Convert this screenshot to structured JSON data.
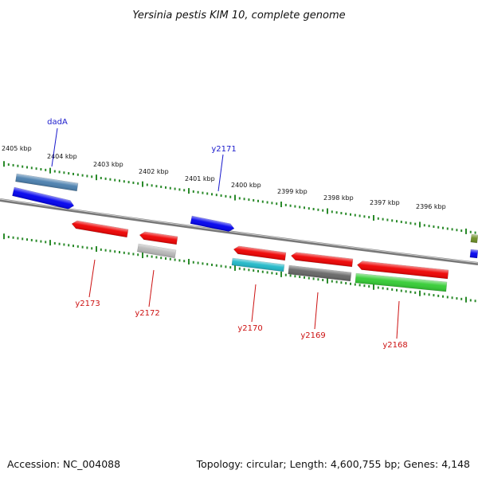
{
  "title": "Yersinia pestis KIM 10, complete genome",
  "footer": {
    "accession": "Accession: NC_004088",
    "summary": "Topology: circular; Length: 4,600,755 bp; Genes: 4,148"
  },
  "colors": {
    "backbone": "#8a8a8a",
    "tick": "#2a8a2a",
    "forward_label": "#1a1acc",
    "reverse_label": "#cc1111"
  },
  "ticks": [
    "2405 kbp",
    "2404 kbp",
    "2403 kbp",
    "2402 kbp",
    "2401 kbp",
    "2400 kbp",
    "2399 kbp",
    "2398 kbp",
    "2397 kbp",
    "2396 kbp"
  ],
  "genes": {
    "forward": [
      {
        "name": "dadA",
        "color": "#0000ee"
      },
      {
        "name": "",
        "color": "#4a7fae"
      },
      {
        "name": "y2171",
        "color": "#0000ee"
      },
      {
        "name": "",
        "color": "#6b8e23"
      },
      {
        "name": "",
        "color": "#0000ee"
      }
    ],
    "reverse": [
      {
        "name": "y2173",
        "color": "#ee0000"
      },
      {
        "name": "y2172",
        "color": "#ee0000"
      },
      {
        "name": "",
        "color": "#b8b8b8"
      },
      {
        "name": "y2170",
        "color": "#ee0000"
      },
      {
        "name": "",
        "color": "#20b8c8"
      },
      {
        "name": "y2169",
        "color": "#ee0000"
      },
      {
        "name": "",
        "color": "#666666"
      },
      {
        "name": "y2168",
        "color": "#ee0000"
      },
      {
        "name": "",
        "color": "#33cc33"
      }
    ]
  }
}
